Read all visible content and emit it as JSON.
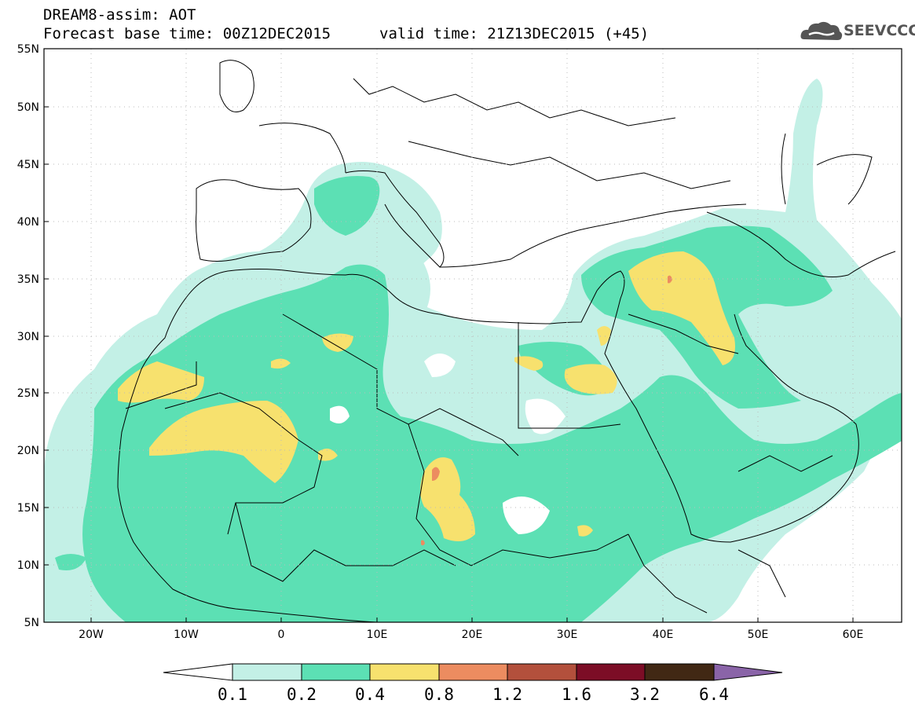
{
  "header": {
    "model_title": "DREAM8-assim: AOT",
    "base_time": "Forecast base time: 00Z12DEC2015",
    "valid_time": "valid time: 21Z13DEC2015 (+45)"
  },
  "logo": {
    "text": "SEEVCCC",
    "icon": "cloud-logo-icon"
  },
  "map": {
    "lat_labels": [
      "55N",
      "50N",
      "45N",
      "40N",
      "35N",
      "30N",
      "25N",
      "20N",
      "15N",
      "10N",
      "5N"
    ],
    "lon_labels": [
      "20W",
      "10W",
      "0",
      "10E",
      "20E",
      "30E",
      "40E",
      "50E",
      "60E"
    ]
  },
  "colorbar": {
    "labels": [
      "0.1",
      "0.2",
      "0.4",
      "0.8",
      "1.2",
      "1.6",
      "3.2",
      "6.4"
    ],
    "colors": [
      "#c3f0e6",
      "#5ce0b4",
      "#f7e16e",
      "#ec8c60",
      "#b3503c",
      "#7c0d26",
      "#412814"
    ],
    "under_color": "#ffffff",
    "over_color": "#8a64a8"
  },
  "palette": {
    "level1": "#c3f0e6",
    "level2": "#5ce0b4",
    "level3": "#f7e16e",
    "level4": "#ec8c60"
  }
}
